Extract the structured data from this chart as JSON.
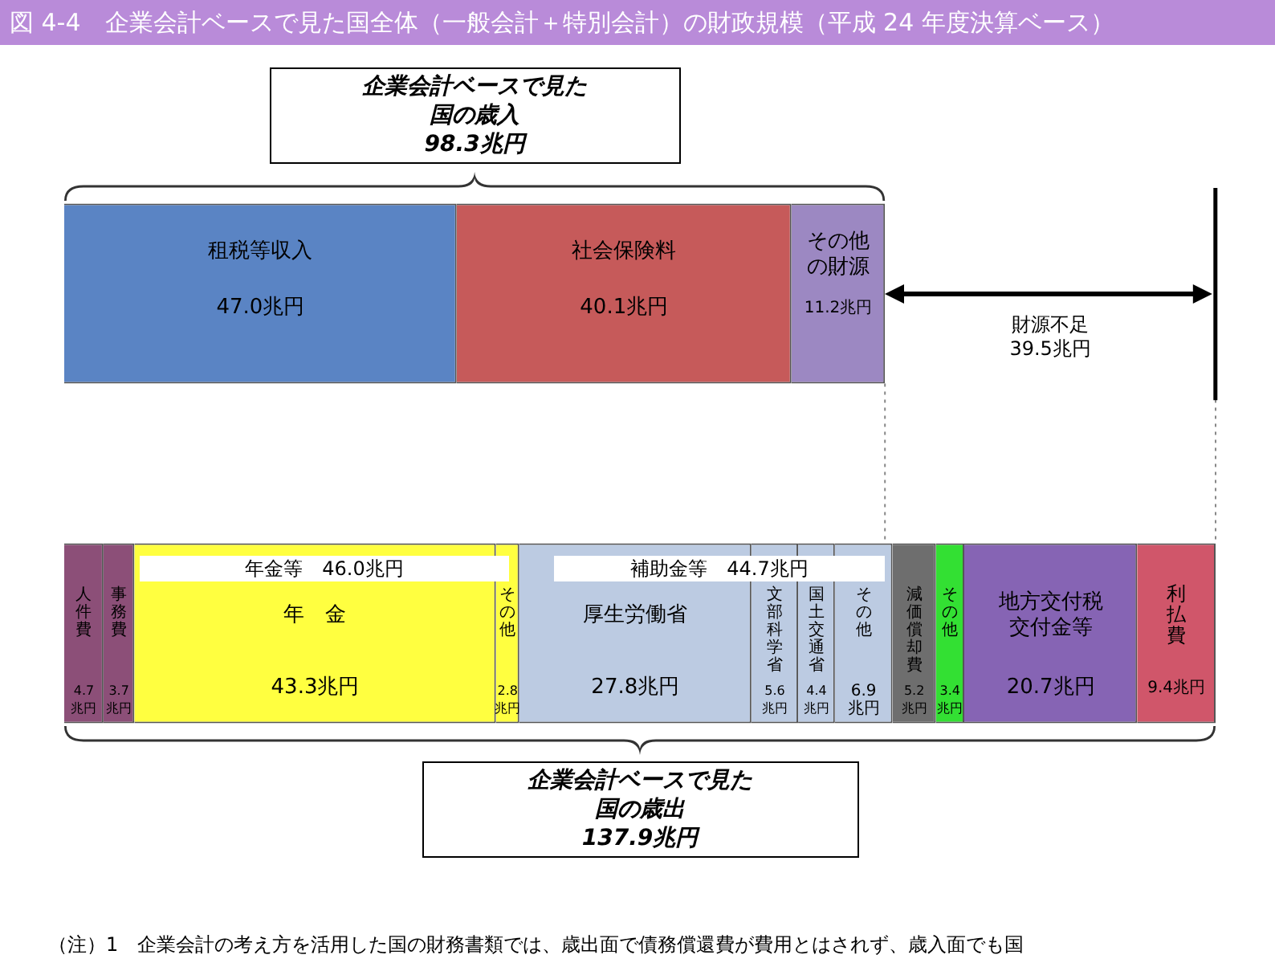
{
  "chart_data": {
    "type": "bar",
    "orientation": "horizontal",
    "stacked": true,
    "title": "図 4-4　企業会計ベースで見た国全体（一般会計＋特別会計）の財政規模（平成 24 年度決算ベース）",
    "categories": [
      null,
      null
    ],
    "xlim": [
      0,
      137.9
    ],
    "tick_labels": false,
    "legend": false,
    "series": [
      {
        "name": "租税等収入",
        "color": "#5a84c4",
        "values": [
          47.0,
          null
        ],
        "value_labels": [
          "47.0兆円",
          null
        ]
      },
      {
        "name": "社会保険料",
        "color": "#c65a5a",
        "values": [
          40.1,
          null
        ],
        "value_labels": [
          "40.1兆円",
          null
        ]
      },
      {
        "name": "その他の財源",
        "color": "#9c88c2",
        "values": [
          11.2,
          null
        ],
        "value_labels": [
          "11.2兆円",
          null
        ]
      },
      {
        "name": "人件費",
        "color": "#8c4f78",
        "values": [
          null,
          4.7
        ],
        "value_labels": [
          null,
          "4.7兆円"
        ]
      },
      {
        "name": "事務費",
        "color": "#8c4f78",
        "values": [
          null,
          3.7
        ],
        "value_labels": [
          null,
          "3.7兆円"
        ]
      },
      {
        "name": "年　金",
        "color": "#ffff40",
        "values": [
          null,
          43.3
        ],
        "value_labels": [
          null,
          "43.3兆円"
        ]
      },
      {
        "name": "その他",
        "color": "#ffff40",
        "values": [
          null,
          2.8
        ],
        "value_labels": [
          null,
          "2.8兆円"
        ]
      },
      {
        "name": "厚生労働省",
        "color": "#bccbe2",
        "values": [
          null,
          27.8
        ],
        "value_labels": [
          null,
          "27.8兆円"
        ]
      },
      {
        "name": "文部科学省",
        "color": "#bccbe2",
        "values": [
          null,
          5.6
        ],
        "value_labels": [
          null,
          "5.6兆円"
        ]
      },
      {
        "name": "国土交通省",
        "color": "#bccbe2",
        "values": [
          null,
          4.4
        ],
        "value_labels": [
          null,
          "4.4兆円"
        ]
      },
      {
        "name": "その他",
        "color": "#bccbe2",
        "values": [
          null,
          6.9
        ],
        "value_labels": [
          null,
          "6.9兆円"
        ]
      },
      {
        "name": "減価償却費",
        "color": "#6e6e6e",
        "values": [
          null,
          5.2
        ],
        "value_labels": [
          null,
          "5.2兆円"
        ]
      },
      {
        "name": "その他",
        "color": "#33e033",
        "values": [
          null,
          3.4
        ],
        "value_labels": [
          null,
          "3.4兆円"
        ]
      },
      {
        "name": "地方交付税交付金等",
        "color": "#8664b4",
        "values": [
          null,
          20.7
        ],
        "value_labels": [
          null,
          "20.7兆円"
        ]
      },
      {
        "name": "利払費",
        "color": "#d0566a",
        "values": [
          null,
          9.4
        ],
        "value_labels": [
          null,
          "9.4兆円"
        ]
      }
    ],
    "ref_lines": [
      {
        "axis": "x",
        "value": 98.3,
        "color": "#888888",
        "line_style": "dotted"
      },
      {
        "axis": "x",
        "value": 137.9,
        "color": "#888888",
        "line_style": "dotted"
      }
    ],
    "annotations": [
      "企業会計ベースで見た",
      "国の歳入",
      "98.3兆円",
      "財源不足",
      "39.5兆円",
      "年金等　46.0兆円",
      "補助金等　44.7兆円",
      "企業会計ベースで見た",
      "国の歳出",
      "137.9兆円",
      "（注）1　企業会計の考え方を活用した国の財務書類では、歳出面で債務償還費が費用とはされず、歳入面でも国"
    ]
  }
}
